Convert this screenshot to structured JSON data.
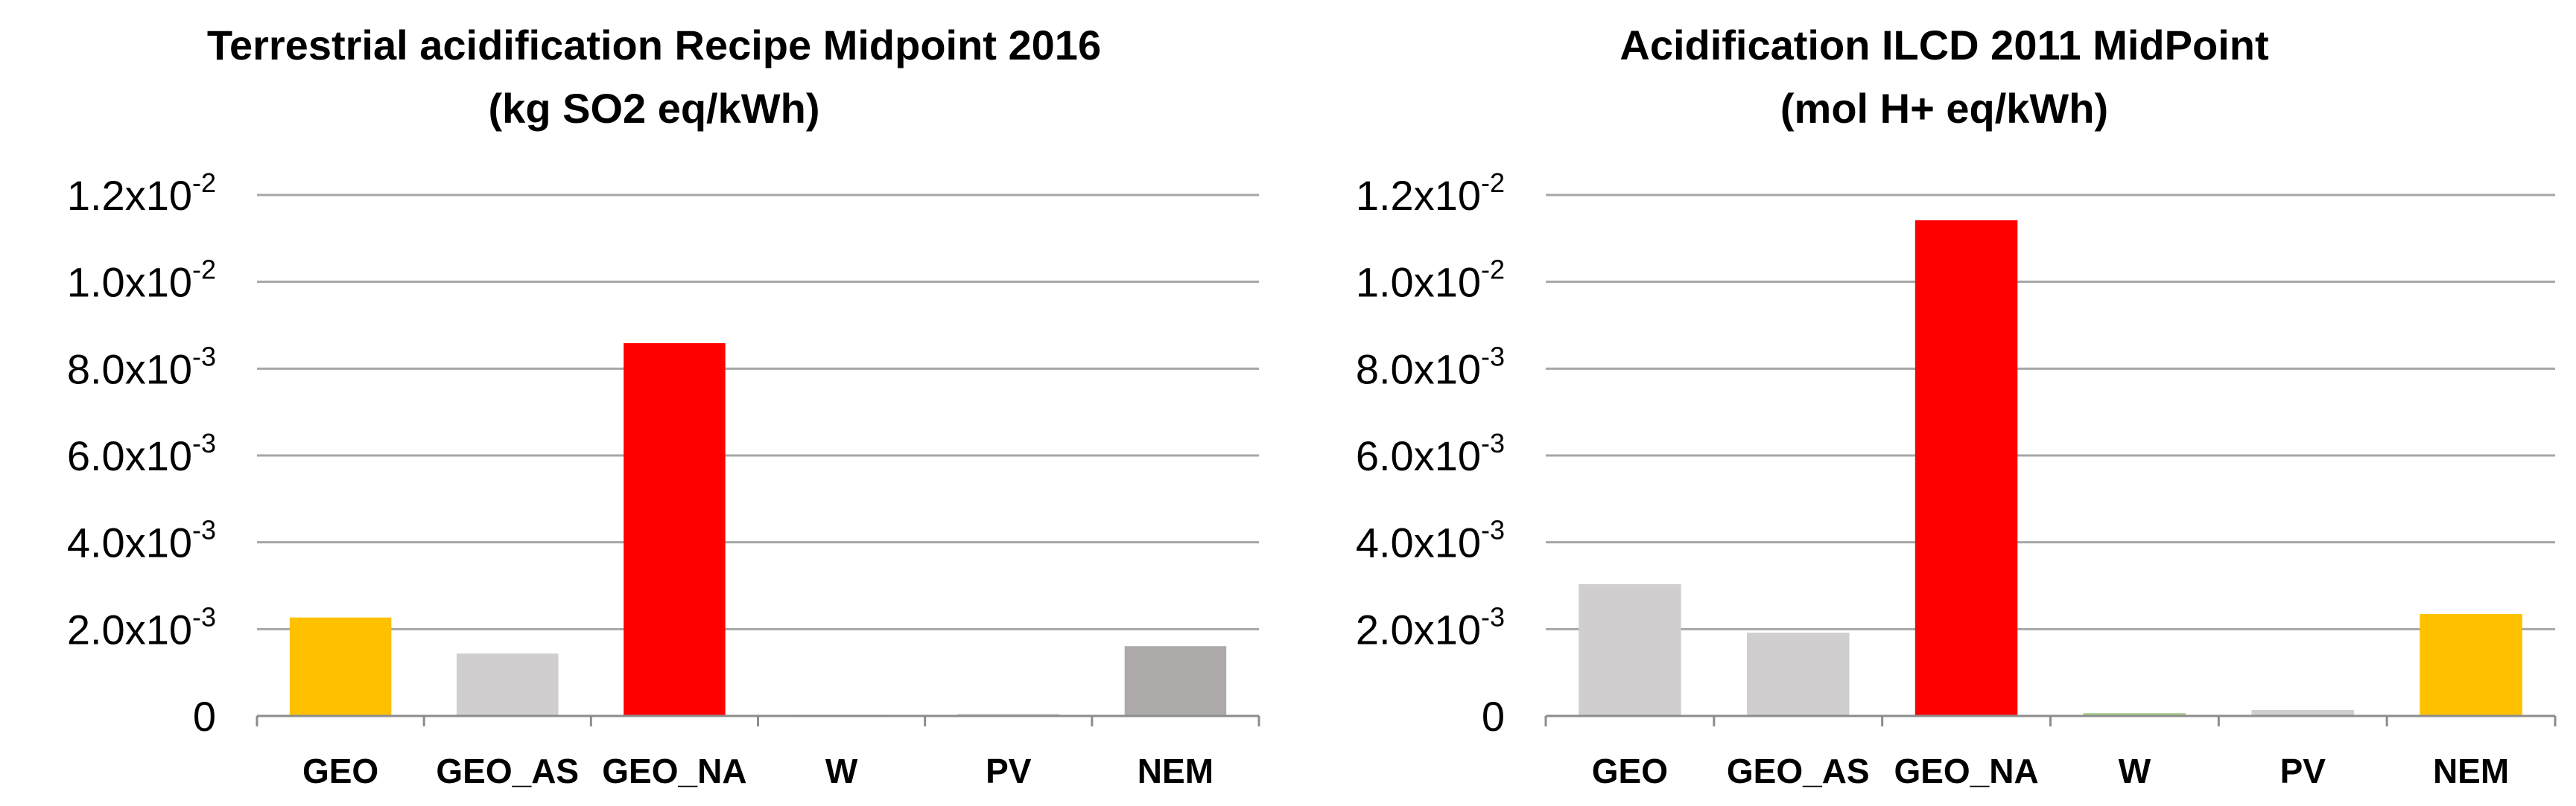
{
  "chart_data": [
    {
      "type": "bar",
      "title": "Terrestrial acidification Recipe Midpoint 2016",
      "subtitle": "(kg SO2 eq/kWh)",
      "categories": [
        "GEO",
        "GEO_AS",
        "GEO_NA",
        "W",
        "PV",
        "NEM"
      ],
      "values": [
        0.00225,
        0.00142,
        0.00857,
        1e-05,
        3e-05,
        0.00159
      ],
      "bar_colors": [
        "#ffc000",
        "#d0cece",
        "#ff0000",
        "#a9d18e",
        "#d0cece",
        "#aeaaaa"
      ],
      "ylim": [
        0,
        0.012
      ],
      "yticks": [
        {
          "mantissa": "0",
          "exp": ""
        },
        {
          "mantissa": "2.0x10",
          "exp": "-3"
        },
        {
          "mantissa": "4.0x10",
          "exp": "-3"
        },
        {
          "mantissa": "6.0x10",
          "exp": "-3"
        },
        {
          "mantissa": "8.0x10",
          "exp": "-3"
        },
        {
          "mantissa": "1.0x10",
          "exp": "-2"
        },
        {
          "mantissa": "1.2x10",
          "exp": "-2"
        }
      ],
      "xlabel": "",
      "ylabel": "",
      "grid": true,
      "legend": "none"
    },
    {
      "type": "bar",
      "title": "Acidification ILCD 2011 MidPoint",
      "subtitle": "(mol H+ eq/kWh)",
      "categories": [
        "GEO",
        "GEO_AS",
        "GEO_NA",
        "W",
        "PV",
        "NEM"
      ],
      "values": [
        0.00302,
        0.0019,
        0.0114,
        5e-05,
        0.00012,
        0.00233
      ],
      "bar_colors": [
        "#d0cece",
        "#d0cece",
        "#ff0000",
        "#a9d18e",
        "#d0cece",
        "#ffc000"
      ],
      "ylim": [
        0,
        0.012
      ],
      "yticks": [
        {
          "mantissa": "0",
          "exp": ""
        },
        {
          "mantissa": "2.0x10",
          "exp": "-3"
        },
        {
          "mantissa": "4.0x10",
          "exp": "-3"
        },
        {
          "mantissa": "6.0x10",
          "exp": "-3"
        },
        {
          "mantissa": "8.0x10",
          "exp": "-3"
        },
        {
          "mantissa": "1.0x10",
          "exp": "-2"
        },
        {
          "mantissa": "1.2x10",
          "exp": "-2"
        }
      ],
      "xlabel": "",
      "ylabel": "",
      "grid": true,
      "legend": "none"
    }
  ]
}
